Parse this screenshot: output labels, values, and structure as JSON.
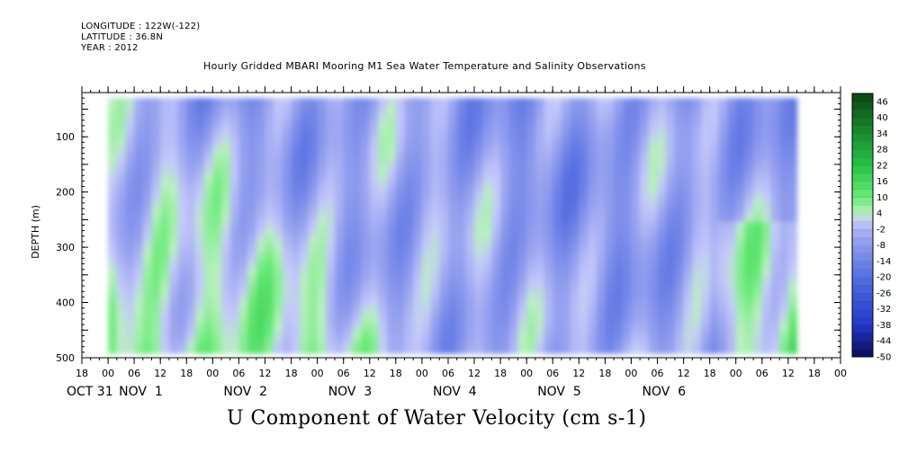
{
  "header": {
    "longitude": "LONGITUDE : 122W(-122)",
    "latitude": "LATITUDE : 36.8N",
    "year": "YEAR : 2012",
    "title": "Hourly Gridded MBARI Mooring M1 Sea Water Temperature and Salinity Observations"
  },
  "chart_data": {
    "type": "heatmap",
    "title": "Hourly Gridded MBARI Mooring M1 Sea Water Temperature and Salinity Observations",
    "xlabel": "U Component of Water Velocity (cm s-1)",
    "ylabel": "DEPTH (m)",
    "x_hour_ticks": [
      "18",
      "00",
      "06",
      "12",
      "18",
      "00",
      "06",
      "12",
      "18",
      "00",
      "06",
      "12",
      "18",
      "00",
      "06",
      "12",
      "18",
      "00",
      "06",
      "12",
      "18",
      "00",
      "06",
      "12",
      "18",
      "00",
      "06",
      "12",
      "18",
      "00"
    ],
    "x_day_labels": [
      "OCT 31",
      "NOV  1",
      "NOV  2",
      "NOV  3",
      "NOV  4",
      "NOV  5",
      "NOV  6"
    ],
    "y_ticks": [
      100,
      200,
      300,
      400,
      500
    ],
    "ylim": [
      500,
      20
    ],
    "colorbar": {
      "labels": [
        46,
        40,
        34,
        28,
        22,
        16,
        10,
        4,
        -2,
        -8,
        -14,
        -20,
        -26,
        -32,
        -38,
        -44,
        -50
      ],
      "range": [
        -50,
        49
      ]
    }
  }
}
